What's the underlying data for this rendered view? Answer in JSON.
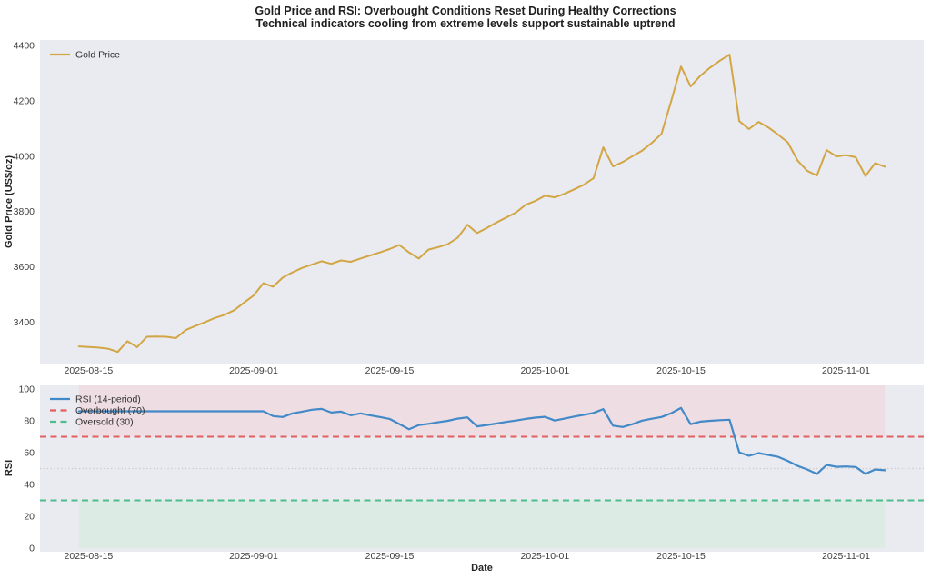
{
  "title": "Gold Price and RSI: Overbought Conditions Reset During Healthy Corrections",
  "subtitle": "Technical indicators cooling from extreme levels support sustainable uptrend",
  "colors": {
    "figure_bg": "#ffffff",
    "plot_bg": "#eaeaf1",
    "gold_line": "#d2a644",
    "rsi_line": "#4289c8",
    "overbought_red": "#e2605f",
    "oversold_green": "#4cbd8b",
    "midline_grey": "#c9c9c9",
    "overbought_band": "#eedde3",
    "oversold_band": "#dcece4",
    "title_text": "#1f1f1f",
    "tick_text": "#3d3d3d"
  },
  "chart_data": [
    {
      "type": "line",
      "panel": "gold-price",
      "ylabel": "Gold Price (US$/oz)",
      "legend_position": "upper left",
      "grid": false,
      "ylim": [
        3250,
        4420
      ],
      "yticks": [
        3400,
        3600,
        3800,
        4000,
        4200,
        4400
      ],
      "xlim": [
        "2025-08-10",
        "2025-11-09"
      ],
      "xticks": [
        "2025-08-15",
        "2025-09-01",
        "2025-09-15",
        "2025-10-01",
        "2025-10-15",
        "2025-11-01"
      ],
      "series": [
        {
          "id": "gold-price-line",
          "name": "Gold Price",
          "color": "#d2a644",
          "width": 2,
          "dash": ""
        }
      ],
      "dates": [
        "2025-08-14",
        "2025-08-15",
        "2025-08-16",
        "2025-08-17",
        "2025-08-18",
        "2025-08-19",
        "2025-08-20",
        "2025-08-21",
        "2025-08-22",
        "2025-08-23",
        "2025-08-24",
        "2025-08-25",
        "2025-08-26",
        "2025-08-27",
        "2025-08-28",
        "2025-08-29",
        "2025-08-30",
        "2025-08-31",
        "2025-09-01",
        "2025-09-02",
        "2025-09-03",
        "2025-09-04",
        "2025-09-05",
        "2025-09-06",
        "2025-09-07",
        "2025-09-08",
        "2025-09-09",
        "2025-09-10",
        "2025-09-11",
        "2025-09-12",
        "2025-09-13",
        "2025-09-14",
        "2025-09-15",
        "2025-09-16",
        "2025-09-17",
        "2025-09-18",
        "2025-09-19",
        "2025-09-20",
        "2025-09-21",
        "2025-09-22",
        "2025-09-23",
        "2025-09-24",
        "2025-09-25",
        "2025-09-26",
        "2025-09-27",
        "2025-09-28",
        "2025-09-29",
        "2025-09-30",
        "2025-10-01",
        "2025-10-02",
        "2025-10-03",
        "2025-10-04",
        "2025-10-05",
        "2025-10-06",
        "2025-10-07",
        "2025-10-08",
        "2025-10-09",
        "2025-10-10",
        "2025-10-11",
        "2025-10-12",
        "2025-10-13",
        "2025-10-14",
        "2025-10-15",
        "2025-10-16",
        "2025-10-17",
        "2025-10-18",
        "2025-10-19",
        "2025-10-20",
        "2025-10-21",
        "2025-10-22",
        "2025-10-23",
        "2025-10-24",
        "2025-10-25",
        "2025-10-26",
        "2025-10-27",
        "2025-10-28",
        "2025-10-29",
        "2025-10-30",
        "2025-10-31",
        "2025-11-01",
        "2025-11-02",
        "2025-11-03",
        "2025-11-04",
        "2025-11-05"
      ],
      "values": [
        3312,
        3310,
        3308,
        3304,
        3292,
        3331,
        3309,
        3347,
        3348,
        3347,
        3342,
        3371,
        3386,
        3400,
        3415,
        3426,
        3443,
        3470,
        3496,
        3541,
        3528,
        3561,
        3580,
        3596,
        3608,
        3620,
        3611,
        3623,
        3618,
        3630,
        3641,
        3652,
        3664,
        3679,
        3652,
        3630,
        3662,
        3671,
        3682,
        3705,
        3752,
        3722,
        3740,
        3760,
        3778,
        3796,
        3824,
        3838,
        3857,
        3851,
        3864,
        3880,
        3897,
        3920,
        4032,
        3963,
        3979,
        4000,
        4020,
        4048,
        4081,
        4200,
        4324,
        4252,
        4291,
        4320,
        4345,
        4367,
        4127,
        4098,
        4124,
        4104,
        4078,
        4050,
        3985,
        3947,
        3930,
        4022,
        3999,
        4004,
        3996,
        3928,
        3975,
        3962
      ]
    },
    {
      "type": "line",
      "panel": "rsi",
      "ylabel": "RSI",
      "xlabel": "Date",
      "legend_position": "upper left",
      "grid": false,
      "ylim": [
        -2.3,
        102.3
      ],
      "yticks": [
        0,
        20,
        40,
        60,
        80,
        100
      ],
      "xlim": [
        "2025-08-10",
        "2025-11-09"
      ],
      "xticks": [
        "2025-08-15",
        "2025-09-01",
        "2025-09-15",
        "2025-10-01",
        "2025-10-15",
        "2025-11-01"
      ],
      "series": [
        {
          "id": "rsi-line",
          "name": "RSI (14-period)",
          "color": "#4289c8",
          "width": 2.2,
          "dash": ""
        }
      ],
      "hlines": [
        {
          "id": "overbought-line",
          "name": "Overbought (70)",
          "y": 70,
          "color": "#e2605f",
          "width": 2,
          "dash": "7 4.5",
          "in_legend": true
        },
        {
          "id": "oversold-line",
          "name": "Oversold (30)",
          "y": 30,
          "color": "#4cbd8b",
          "width": 2,
          "dash": "7 4.5",
          "in_legend": true
        },
        {
          "id": "rsi-midline-50",
          "name": "midline-50",
          "y": 50,
          "color": "#c9c9c9",
          "width": 1.2,
          "dash": "1.3 2.6",
          "in_legend": false
        }
      ],
      "bands": [
        {
          "id": "overbought-band",
          "from": 70,
          "to": 102.3,
          "color": "#eedde3"
        },
        {
          "id": "oversold-band",
          "from": 0,
          "to": 30,
          "color": "#dcece4"
        }
      ],
      "band_span": [
        "2025-08-14",
        "2025-11-05"
      ],
      "dates": [
        "2025-08-14",
        "2025-08-15",
        "2025-08-16",
        "2025-08-17",
        "2025-08-18",
        "2025-08-19",
        "2025-08-20",
        "2025-08-21",
        "2025-08-22",
        "2025-08-23",
        "2025-08-24",
        "2025-08-25",
        "2025-08-26",
        "2025-08-27",
        "2025-08-28",
        "2025-08-29",
        "2025-08-30",
        "2025-08-31",
        "2025-09-01",
        "2025-09-02",
        "2025-09-03",
        "2025-09-04",
        "2025-09-05",
        "2025-09-06",
        "2025-09-07",
        "2025-09-08",
        "2025-09-09",
        "2025-09-10",
        "2025-09-11",
        "2025-09-12",
        "2025-09-13",
        "2025-09-14",
        "2025-09-15",
        "2025-09-16",
        "2025-09-17",
        "2025-09-18",
        "2025-09-19",
        "2025-09-20",
        "2025-09-21",
        "2025-09-22",
        "2025-09-23",
        "2025-09-24",
        "2025-09-25",
        "2025-09-26",
        "2025-09-27",
        "2025-09-28",
        "2025-09-29",
        "2025-09-30",
        "2025-10-01",
        "2025-10-02",
        "2025-10-03",
        "2025-10-04",
        "2025-10-05",
        "2025-10-06",
        "2025-10-07",
        "2025-10-08",
        "2025-10-09",
        "2025-10-10",
        "2025-10-11",
        "2025-10-12",
        "2025-10-13",
        "2025-10-14",
        "2025-10-15",
        "2025-10-16",
        "2025-10-17",
        "2025-10-18",
        "2025-10-19",
        "2025-10-20",
        "2025-10-21",
        "2025-10-22",
        "2025-10-23",
        "2025-10-24",
        "2025-10-25",
        "2025-10-26",
        "2025-10-27",
        "2025-10-28",
        "2025-10-29",
        "2025-10-30",
        "2025-10-31",
        "2025-11-01",
        "2025-11-02",
        "2025-11-03",
        "2025-11-04",
        "2025-11-05"
      ],
      "values": [
        86,
        86,
        86,
        86,
        86,
        86,
        86,
        86,
        86,
        86,
        86,
        86,
        86,
        86,
        86,
        86,
        86,
        86,
        86,
        86,
        83,
        82.4,
        84.7,
        85.8,
        87,
        87.5,
        85.2,
        85.8,
        83.5,
        84.7,
        83.5,
        82.4,
        81.2,
        78,
        74.7,
        77.3,
        78.1,
        79.1,
        80,
        81.4,
        82.2,
        76.5,
        77.4,
        78.3,
        79.3,
        80.2,
        81.2,
        82,
        82.5,
        80.2,
        81.4,
        82.7,
        83.8,
        85,
        87.4,
        77,
        76.1,
        77.9,
        80.1,
        81.3,
        82.4,
        84.8,
        88.1,
        77.9,
        79.5,
        80,
        80.4,
        80.7,
        60.2,
        58,
        59.7,
        58.5,
        57.4,
        54.8,
        51.7,
        49.4,
        46.6,
        52.3,
        51.1,
        51.3,
        51,
        46.6,
        49.4,
        48.9
      ]
    }
  ]
}
